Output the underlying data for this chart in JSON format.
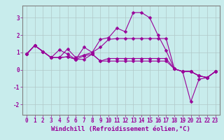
{
  "xlabel": "Windchill (Refroidissement éolien,°C)",
  "background_color": "#c8ecec",
  "line_color": "#990099",
  "xlim": [
    -0.5,
    23.5
  ],
  "ylim": [
    -2.6,
    3.7
  ],
  "yticks": [
    -2,
    -1,
    0,
    1,
    2,
    3
  ],
  "xticks": [
    0,
    1,
    2,
    3,
    4,
    5,
    6,
    7,
    8,
    9,
    10,
    11,
    12,
    13,
    14,
    15,
    16,
    17,
    18,
    19,
    20,
    21,
    22,
    23
  ],
  "series": [
    [
      0.9,
      1.4,
      1.05,
      0.7,
      0.7,
      1.2,
      0.7,
      0.85,
      1.0,
      1.75,
      1.85,
      2.4,
      2.2,
      3.3,
      3.3,
      3.0,
      2.0,
      1.1,
      0.05,
      -0.1,
      -1.85,
      -0.55,
      -0.45,
      -0.1
    ],
    [
      0.9,
      1.4,
      1.05,
      0.7,
      1.15,
      0.9,
      0.6,
      1.3,
      1.0,
      1.3,
      1.75,
      1.8,
      1.8,
      1.8,
      1.8,
      1.8,
      1.8,
      1.8,
      0.05,
      -0.1,
      -0.1,
      -0.35,
      -0.45,
      -0.1
    ],
    [
      0.9,
      1.4,
      1.05,
      0.7,
      0.7,
      0.75,
      0.6,
      0.8,
      0.9,
      0.5,
      0.65,
      0.65,
      0.65,
      0.65,
      0.65,
      0.65,
      0.65,
      0.65,
      0.05,
      -0.1,
      -0.1,
      -0.35,
      -0.45,
      -0.1
    ],
    [
      0.9,
      1.4,
      1.05,
      0.7,
      0.7,
      0.75,
      0.6,
      0.6,
      0.9,
      0.5,
      0.5,
      0.5,
      0.5,
      0.5,
      0.5,
      0.5,
      0.5,
      0.5,
      0.05,
      -0.1,
      -0.1,
      -0.35,
      -0.45,
      -0.1
    ]
  ],
  "marker": "D",
  "markersize": 2.5,
  "linewidth": 0.8,
  "grid_color": "#b0c8c8",
  "tick_fontsize": 5.5,
  "label_fontsize": 6.5
}
